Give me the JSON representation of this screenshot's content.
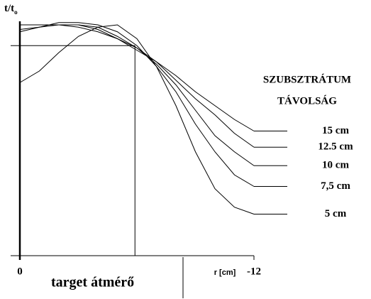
{
  "chart_data": {
    "type": "line",
    "y_label": "t/t",
    "y_label_sub": "o",
    "x_label": "r [cm]",
    "legend_title": [
      "SZUBSZTRÁTUM",
      "TÁVOLSÁG"
    ],
    "x": [
      0,
      -1,
      -2,
      -3,
      -4,
      -5,
      -6,
      -7,
      -8,
      -9,
      -10,
      -11,
      -12
    ],
    "xlim": [
      0,
      -12
    ],
    "xticks": [
      0,
      -12
    ],
    "ylim": [
      0,
      1
    ],
    "series": [
      {
        "name": "15 cm",
        "color": "#000000",
        "values": [
          1.0,
          1.0,
          1.0,
          0.99,
          0.97,
          0.94,
          0.89,
          0.84,
          0.78,
          0.71,
          0.65,
          0.59,
          0.54
        ]
      },
      {
        "name": "12.5 cm",
        "color": "#000000",
        "values": [
          1.0,
          1.0,
          1.0,
          1.0,
          0.98,
          0.94,
          0.9,
          0.84,
          0.76,
          0.68,
          0.61,
          0.53,
          0.47
        ]
      },
      {
        "name": "10 cm",
        "color": "#000000",
        "values": [
          0.98,
          0.99,
          1.0,
          1.0,
          0.99,
          0.95,
          0.9,
          0.83,
          0.74,
          0.63,
          0.52,
          0.45,
          0.39
        ]
      },
      {
        "name": "7,5 cm",
        "color": "#000000",
        "values": [
          0.97,
          0.99,
          1.01,
          1.01,
          1.0,
          0.97,
          0.91,
          0.82,
          0.71,
          0.57,
          0.45,
          0.35,
          0.3
        ]
      },
      {
        "name": "5 cm",
        "color": "#000000",
        "values": [
          0.75,
          0.8,
          0.88,
          0.95,
          0.99,
          1.0,
          0.94,
          0.82,
          0.65,
          0.45,
          0.29,
          0.21,
          0.18
        ]
      }
    ],
    "annotation": {
      "text": "target átmérő",
      "x": -5.9,
      "y": 0.91
    }
  }
}
